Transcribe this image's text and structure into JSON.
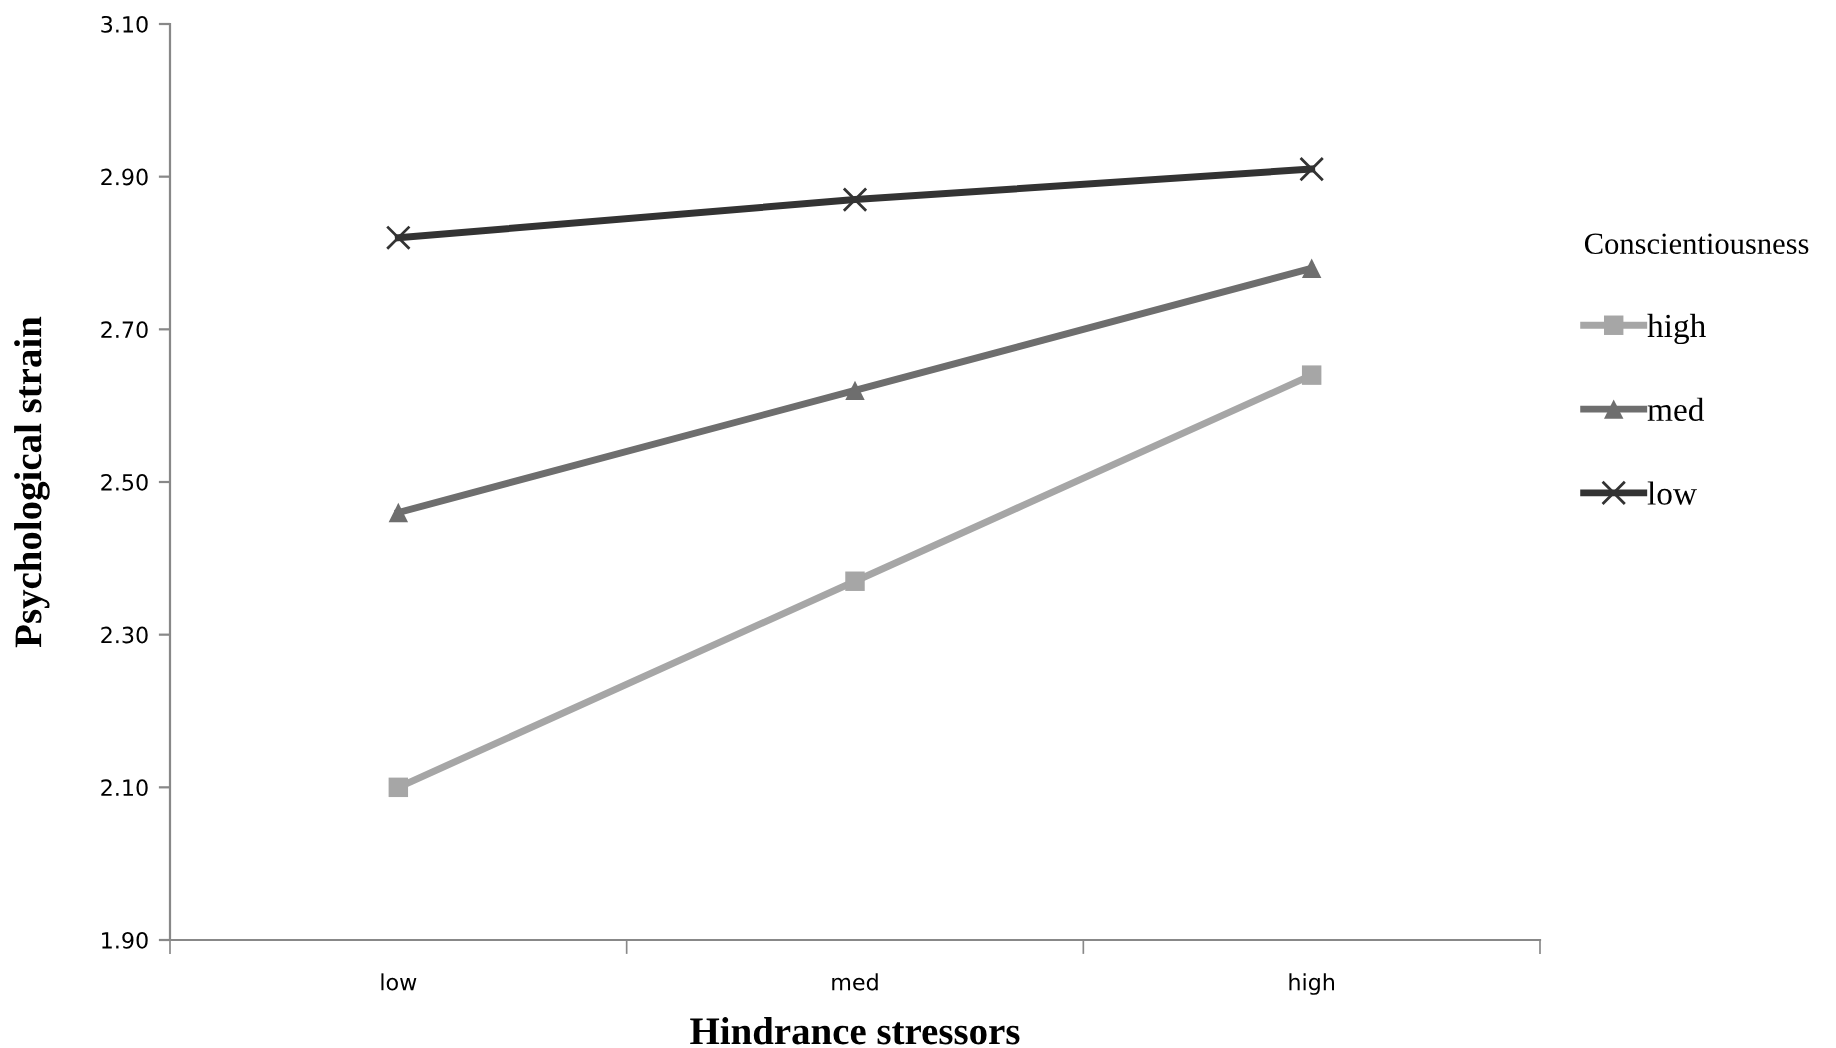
{
  "chart_data": {
    "type": "line",
    "xlabel": "Hindrance stressors",
    "ylabel": "Psychological strain",
    "legend_title": "Conscientiousness",
    "categories": [
      "low",
      "med",
      "high"
    ],
    "series": [
      {
        "name": "high",
        "color": "#a6a6a6",
        "marker": "square",
        "values": [
          2.1,
          2.37,
          2.64
        ]
      },
      {
        "name": "med",
        "color": "#6e6e6e",
        "marker": "triangle",
        "values": [
          2.46,
          2.62,
          2.78
        ]
      },
      {
        "name": "low",
        "color": "#333333",
        "marker": "cross",
        "values": [
          2.82,
          2.87,
          2.91
        ]
      }
    ],
    "ylim": [
      1.9,
      3.1
    ],
    "yticks": [
      {
        "value": 1.9,
        "label": "1.90"
      },
      {
        "value": 2.1,
        "label": "2.10"
      },
      {
        "value": 2.3,
        "label": "2.30"
      },
      {
        "value": 2.5,
        "label": "2.50"
      },
      {
        "value": 2.7,
        "label": "2.70"
      },
      {
        "value": 2.9,
        "label": "2.90"
      },
      {
        "value": 3.1,
        "label": "3.10"
      }
    ],
    "grid": false,
    "legend": "right",
    "line_style": "solid"
  }
}
